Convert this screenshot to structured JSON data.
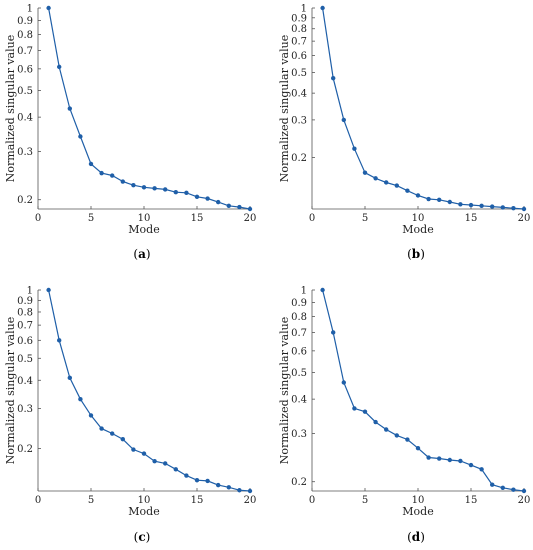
{
  "chart_data": [
    {
      "type": "line",
      "panel": "(a)",
      "panel_letter": "a",
      "xlabel": "Mode",
      "ylabel": "Normalized singular value",
      "yscale": "log",
      "xlim": [
        0,
        20
      ],
      "ylim": [
        0.185,
        1.0
      ],
      "xticks": [
        0,
        5,
        10,
        15,
        20
      ],
      "yticks": [
        1,
        0.9,
        0.8,
        0.7,
        0.6,
        0.5,
        0.4,
        0.3,
        0.2
      ],
      "yticklabels": [
        "1",
        "0.9",
        "0.8",
        "0.7",
        "0.6",
        "0.5",
        "0.4",
        "0.3",
        "0.2"
      ],
      "x": [
        1,
        2,
        3,
        4,
        5,
        6,
        7,
        8,
        9,
        10,
        11,
        12,
        13,
        14,
        15,
        16,
        17,
        18,
        19,
        20
      ],
      "y": [
        1.0,
        0.61,
        0.43,
        0.34,
        0.27,
        0.25,
        0.245,
        0.233,
        0.226,
        0.222,
        0.22,
        0.218,
        0.213,
        0.212,
        0.205,
        0.202,
        0.196,
        0.19,
        0.188,
        0.185
      ],
      "color": "#1f5fa8"
    },
    {
      "type": "line",
      "panel": "(b)",
      "panel_letter": "b",
      "xlabel": "Mode",
      "ylabel": "Normalized singular value",
      "yscale": "log",
      "xlim": [
        0,
        20
      ],
      "ylim": [
        0.115,
        1.0
      ],
      "xticks": [
        0,
        5,
        10,
        15,
        20
      ],
      "yticks": [
        1,
        0.9,
        0.8,
        0.7,
        0.6,
        0.5,
        0.4,
        0.3,
        0.2
      ],
      "yticklabels": [
        "1",
        "0.9",
        "0.8",
        "0.7",
        "0.6",
        "0.5",
        "0.4",
        "0.3",
        "0.2"
      ],
      "x": [
        1,
        2,
        3,
        4,
        5,
        6,
        7,
        8,
        9,
        10,
        11,
        12,
        13,
        14,
        15,
        16,
        17,
        18,
        19,
        20
      ],
      "y": [
        1.0,
        0.47,
        0.3,
        0.22,
        0.17,
        0.16,
        0.153,
        0.148,
        0.14,
        0.133,
        0.128,
        0.127,
        0.124,
        0.121,
        0.12,
        0.119,
        0.118,
        0.117,
        0.116,
        0.115
      ],
      "color": "#1f5fa8"
    },
    {
      "type": "line",
      "panel": "(c)",
      "panel_letter": "c",
      "xlabel": "Mode",
      "ylabel": "Normalized singular value",
      "yscale": "log",
      "xlim": [
        0,
        20
      ],
      "ylim": [
        0.13,
        1.0
      ],
      "xticks": [
        0,
        5,
        10,
        15,
        20
      ],
      "yticks": [
        1,
        0.9,
        0.8,
        0.7,
        0.6,
        0.5,
        0.4,
        0.3,
        0.2
      ],
      "yticklabels": [
        "1",
        "0.9",
        "0.8",
        "0.7",
        "0.6",
        "0.5",
        "0.4",
        "0.3",
        "0.2"
      ],
      "x": [
        1,
        2,
        3,
        4,
        5,
        6,
        7,
        8,
        9,
        10,
        11,
        12,
        13,
        14,
        15,
        16,
        17,
        18,
        19,
        20
      ],
      "y": [
        1.0,
        0.6,
        0.41,
        0.33,
        0.28,
        0.245,
        0.233,
        0.22,
        0.198,
        0.19,
        0.176,
        0.172,
        0.162,
        0.152,
        0.145,
        0.144,
        0.138,
        0.135,
        0.131,
        0.13
      ],
      "color": "#1f5fa8"
    },
    {
      "type": "line",
      "panel": "(d)",
      "panel_letter": "d",
      "xlabel": "Mode",
      "ylabel": "Normalized singular value",
      "yscale": "log",
      "xlim": [
        0,
        20
      ],
      "ylim": [
        0.185,
        1.0
      ],
      "xticks": [
        0,
        5,
        10,
        15,
        20
      ],
      "yticks": [
        1,
        0.9,
        0.8,
        0.7,
        0.6,
        0.5,
        0.4,
        0.3,
        0.2
      ],
      "yticklabels": [
        "1",
        "0.9",
        "0.8",
        "0.7",
        "0.6",
        "0.5",
        "0.4",
        "0.3",
        "0.2"
      ],
      "x": [
        1,
        2,
        3,
        4,
        5,
        6,
        7,
        8,
        9,
        10,
        11,
        12,
        13,
        14,
        15,
        16,
        17,
        18,
        19,
        20
      ],
      "y": [
        1.0,
        0.7,
        0.46,
        0.37,
        0.36,
        0.33,
        0.31,
        0.295,
        0.285,
        0.265,
        0.245,
        0.243,
        0.24,
        0.238,
        0.23,
        0.222,
        0.195,
        0.19,
        0.187,
        0.185
      ],
      "color": "#1f5fa8"
    }
  ]
}
